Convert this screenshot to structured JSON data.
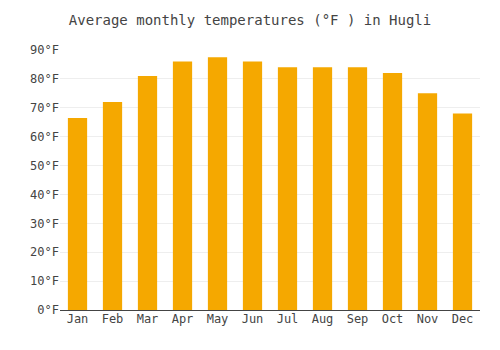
{
  "chart_data": {
    "type": "bar",
    "title": "Average monthly temperatures (°F ) in Hugli",
    "categories": [
      "Jan",
      "Feb",
      "Mar",
      "Apr",
      "May",
      "Jun",
      "Jul",
      "Aug",
      "Sep",
      "Oct",
      "Nov",
      "Dec"
    ],
    "values": [
      66.5,
      72.0,
      81.0,
      86.0,
      87.5,
      86.0,
      84.0,
      84.0,
      84.0,
      82.0,
      75.0,
      68.0
    ],
    "color": "#F5A800",
    "ylim": [
      0,
      90
    ],
    "yticks": [
      {
        "value": 0,
        "label": "0°F"
      },
      {
        "value": 10,
        "label": "10°F"
      },
      {
        "value": 20,
        "label": "20°F"
      },
      {
        "value": 30,
        "label": "30°F"
      },
      {
        "value": 40,
        "label": "40°F"
      },
      {
        "value": 50,
        "label": "50°F"
      },
      {
        "value": 60,
        "label": "60°F"
      },
      {
        "value": 70,
        "label": "70°F"
      },
      {
        "value": 80,
        "label": "80°F"
      },
      {
        "value": 90,
        "label": "90°F"
      }
    ],
    "grid": true
  }
}
